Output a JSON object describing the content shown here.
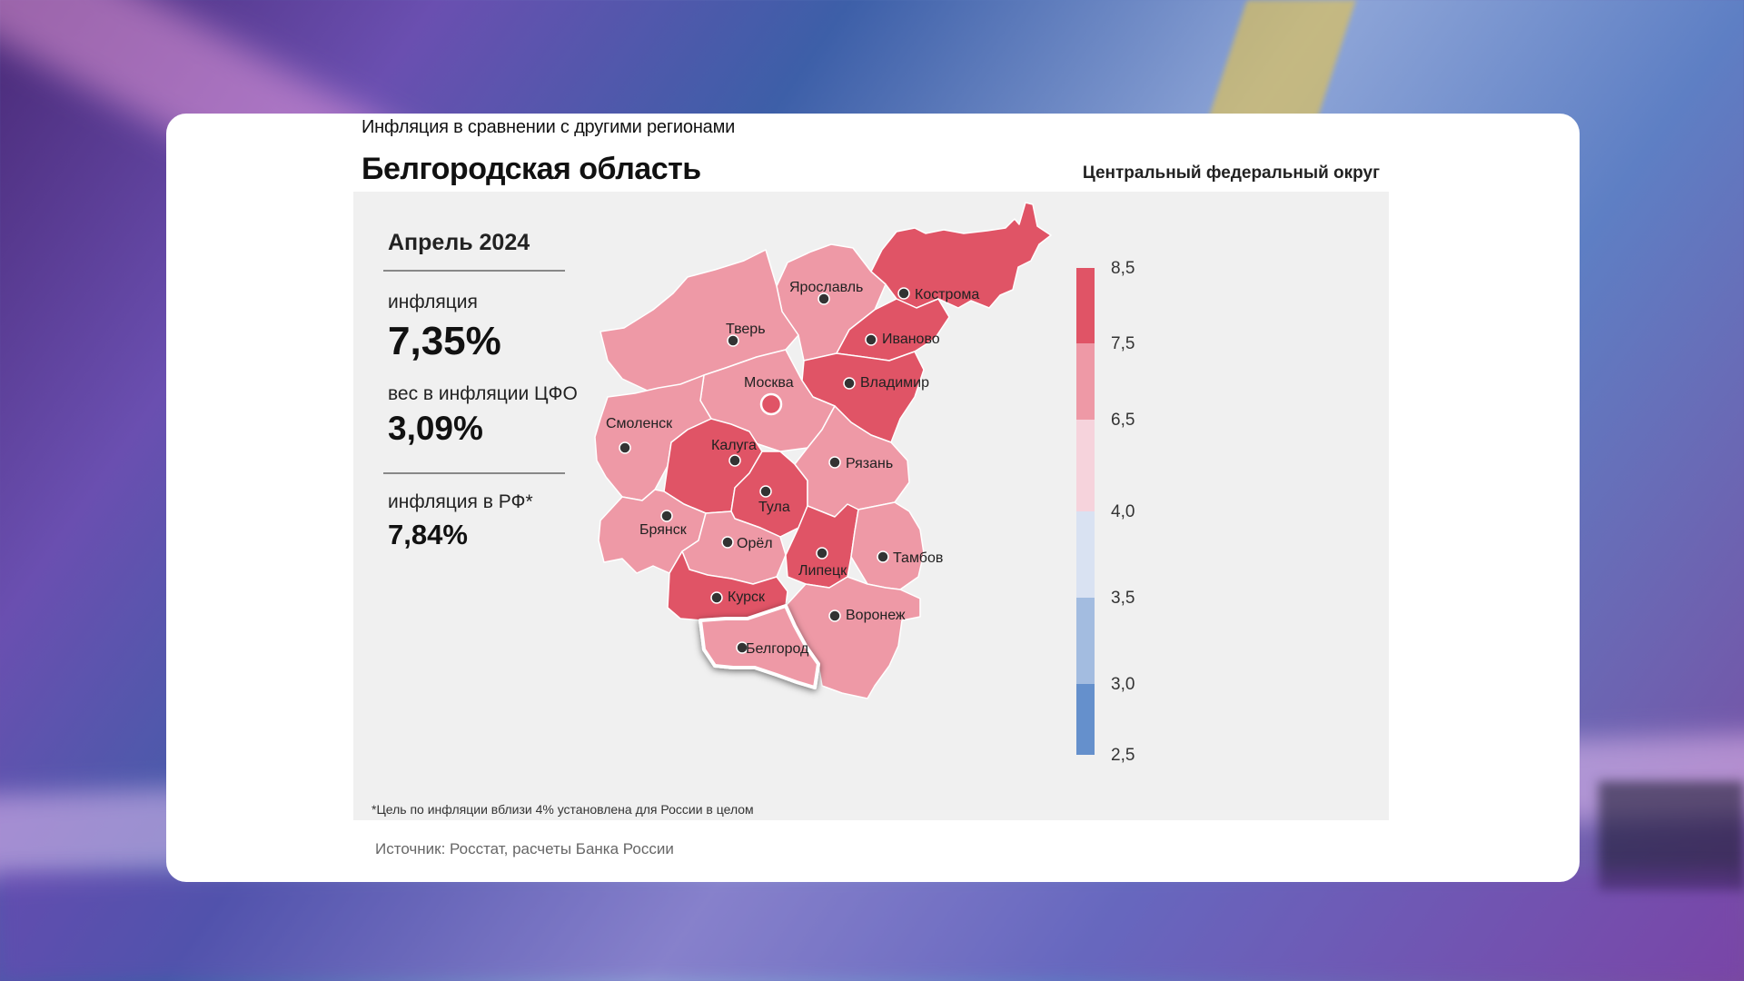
{
  "header": {
    "subtitle": "Инфляция в сравнении с другими регионами",
    "title": "Белгородская область",
    "district": "Центральный федеральный округ"
  },
  "summary": {
    "period": "Апрель 2024",
    "inflation_label": "инфляция",
    "inflation_value": "7,35%",
    "weight_label": "вес в инфляции ЦФО",
    "weight_value": "3,09%",
    "rf_label": "инфляция в РФ*",
    "rf_value": "7,84%"
  },
  "footnote": "*Цель по инфляции вблизи 4% установлена для России в целом",
  "source": "Источник: Росстат, расчеты Банка России",
  "legend": {
    "ticks": [
      "8,5",
      "7,5",
      "6,5",
      "4,0",
      "3,5",
      "3,0",
      "2,5"
    ],
    "bins": [
      {
        "from": 7.5,
        "to": 8.5,
        "color": "#e05466"
      },
      {
        "from": 6.5,
        "to": 7.5,
        "color": "#ee99a6"
      },
      {
        "from": 4.0,
        "to": 6.5,
        "color": "#f6d3dc"
      },
      {
        "from": 3.5,
        "to": 4.0,
        "color": "#d9e2f2"
      },
      {
        "from": 3.0,
        "to": 3.5,
        "color": "#a3bce0"
      },
      {
        "from": 2.5,
        "to": 3.0,
        "color": "#6590cc"
      }
    ]
  },
  "colors": {
    "high": "#e05466",
    "mid": "#ee99a6",
    "highlight_border": "#ffffff"
  },
  "regions": [
    {
      "name": "Кострома",
      "bin": "high"
    },
    {
      "name": "Ярославль",
      "bin": "mid"
    },
    {
      "name": "Тверь",
      "bin": "mid"
    },
    {
      "name": "Иваново",
      "bin": "high"
    },
    {
      "name": "Владимир",
      "bin": "high"
    },
    {
      "name": "Москва",
      "bin": "mid"
    },
    {
      "name": "Смоленск",
      "bin": "mid"
    },
    {
      "name": "Калуга",
      "bin": "high"
    },
    {
      "name": "Тула",
      "bin": "high"
    },
    {
      "name": "Рязань",
      "bin": "mid"
    },
    {
      "name": "Брянск",
      "bin": "mid"
    },
    {
      "name": "Орёл",
      "bin": "mid"
    },
    {
      "name": "Липецк",
      "bin": "high"
    },
    {
      "name": "Тамбов",
      "bin": "mid"
    },
    {
      "name": "Курск",
      "bin": "high"
    },
    {
      "name": "Воронеж",
      "bin": "mid"
    },
    {
      "name": "Белгород",
      "bin": "mid",
      "highlighted": true
    }
  ]
}
